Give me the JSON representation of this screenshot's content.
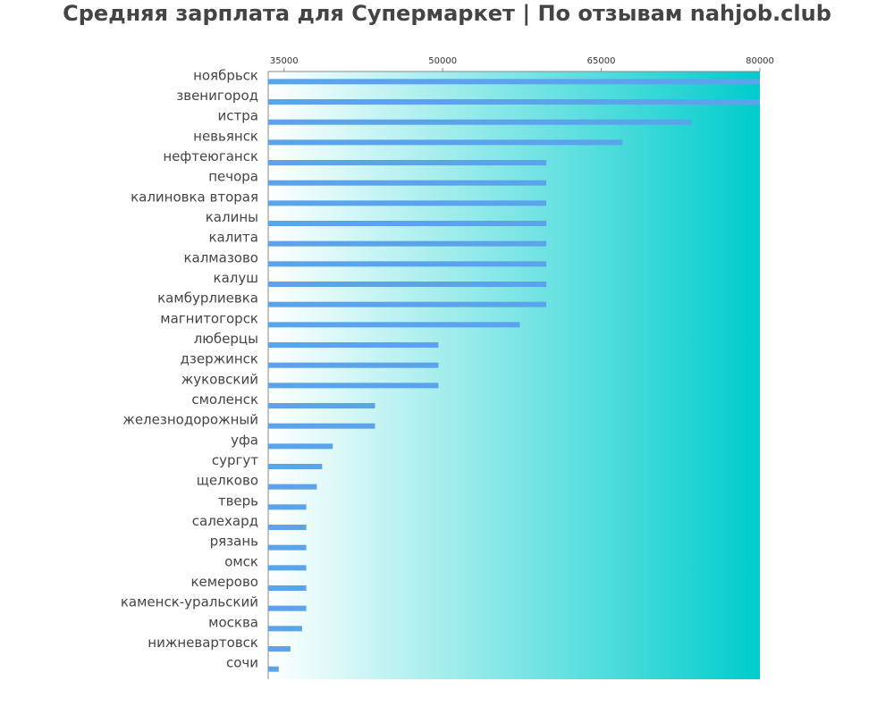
{
  "colors": {
    "bar": "#5ba4ec",
    "gradient_start": "#ffffff",
    "gradient_end": "#00cccc",
    "title": "#444444",
    "labels": "#444444",
    "axis": "#888888"
  },
  "chart_data": {
    "type": "bar",
    "orientation": "horizontal",
    "title": "Средняя зарплата для Супермаркет | По отзывам nahjob.club",
    "xlabel": "",
    "ylabel": "",
    "xlim": [
      33500,
      80000
    ],
    "x_ticks": [
      35000,
      50000,
      65000,
      80000
    ],
    "x_tick_labels": [
      "35000",
      "50000",
      "65000",
      "80000"
    ],
    "x_axis_position": "top",
    "grid": false,
    "categories": [
      "ноябрьск",
      "звенигород",
      "истра",
      "невьянск",
      "нефтеюганск",
      "печора",
      "калиновка вторая",
      "калины",
      "калита",
      "калмазово",
      "калуш",
      "камбурлиевка",
      "магнитогорск",
      "люберцы",
      "дзержинск",
      "жуковский",
      "смоленск",
      "железнодорожный",
      "уфа",
      "сургут",
      "щелково",
      "тверь",
      "салехард",
      "рязань",
      "омск",
      "кемерово",
      "каменск-уральский",
      "москва",
      "нижневартовск",
      "сочи"
    ],
    "values": [
      80000,
      80000,
      73500,
      67000,
      59800,
      59800,
      59800,
      59800,
      59800,
      59800,
      59800,
      59800,
      57300,
      49600,
      49600,
      49600,
      43600,
      43600,
      39600,
      38600,
      38100,
      37100,
      37100,
      37100,
      37100,
      37100,
      37100,
      36700,
      35600,
      34500
    ]
  }
}
